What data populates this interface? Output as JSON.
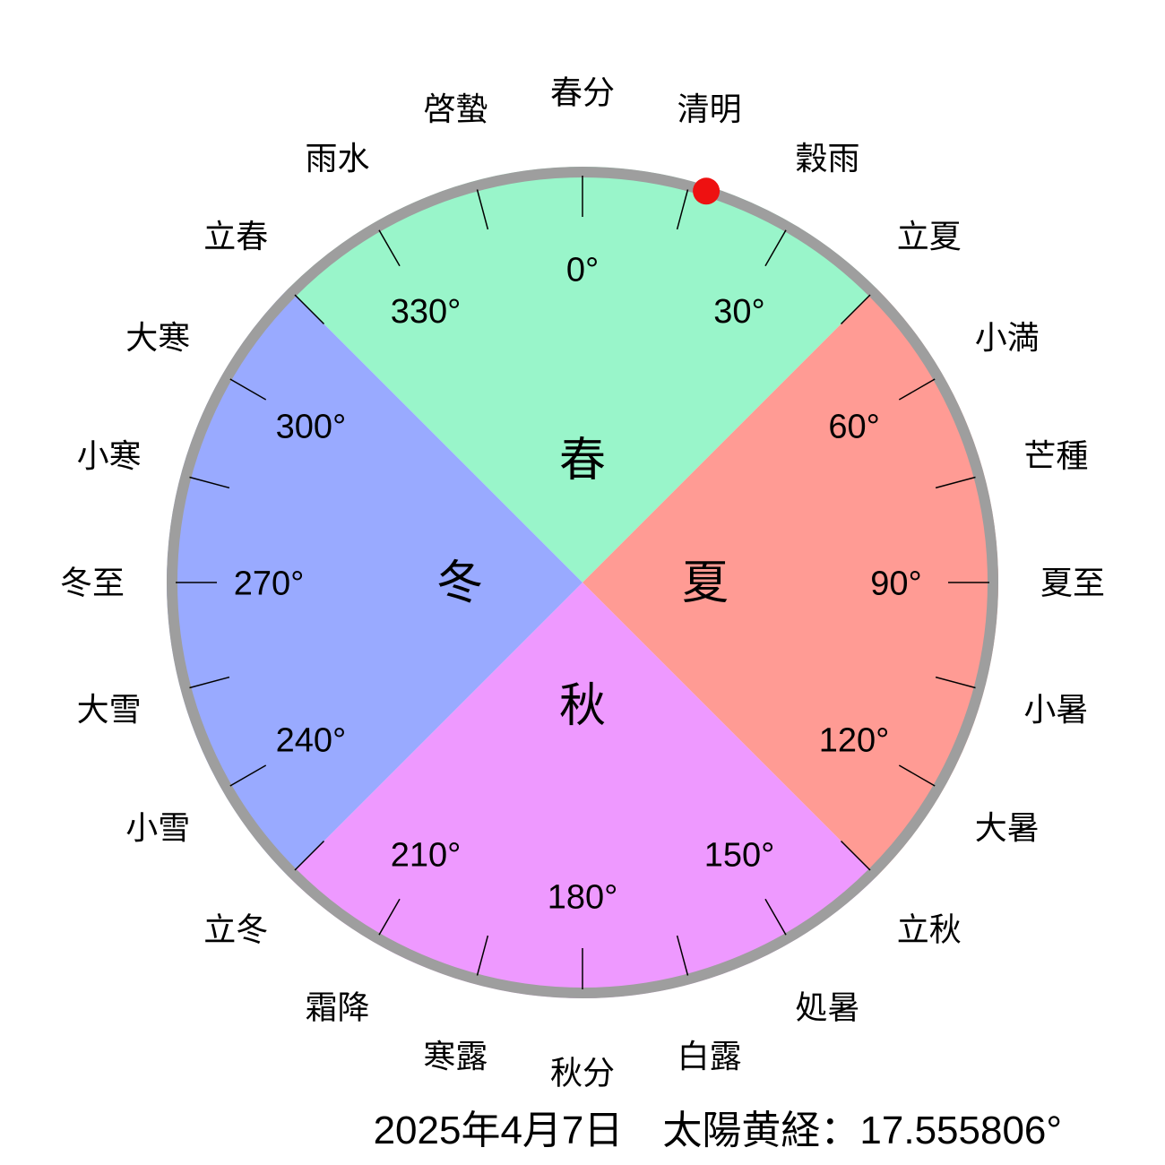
{
  "chart_data": {
    "type": "pie",
    "angle_convention": "degrees clockwise from top; 0 = vernal equinox (spring equinox at top)",
    "background": "#FFFFFF",
    "ring_color": "#9E9E9E",
    "tick_step_deg": 15,
    "seasons": [
      {
        "name": "春",
        "start_deg": -45,
        "end_deg": 45,
        "color": "#99F5CA"
      },
      {
        "name": "夏",
        "start_deg": 45,
        "end_deg": 135,
        "color": "#FF9B94"
      },
      {
        "name": "秋",
        "start_deg": 135,
        "end_deg": 225,
        "color": "#EE99FF"
      },
      {
        "name": "冬",
        "start_deg": 225,
        "end_deg": 315,
        "color": "#99AAFF"
      }
    ],
    "degree_labels": [
      {
        "text": "0°",
        "deg": 0
      },
      {
        "text": "30°",
        "deg": 30
      },
      {
        "text": "60°",
        "deg": 60
      },
      {
        "text": "90°",
        "deg": 90
      },
      {
        "text": "120°",
        "deg": 120
      },
      {
        "text": "150°",
        "deg": 150
      },
      {
        "text": "180°",
        "deg": 180
      },
      {
        "text": "210°",
        "deg": 210
      },
      {
        "text": "240°",
        "deg": 240
      },
      {
        "text": "270°",
        "deg": 270
      },
      {
        "text": "300°",
        "deg": 300
      },
      {
        "text": "330°",
        "deg": 330
      }
    ],
    "solar_terms": [
      {
        "name": "春分",
        "deg": 0
      },
      {
        "name": "清明",
        "deg": 15
      },
      {
        "name": "穀雨",
        "deg": 30
      },
      {
        "name": "立夏",
        "deg": 45
      },
      {
        "name": "小満",
        "deg": 60
      },
      {
        "name": "芒種",
        "deg": 75
      },
      {
        "name": "夏至",
        "deg": 90
      },
      {
        "name": "小暑",
        "deg": 105
      },
      {
        "name": "大暑",
        "deg": 120
      },
      {
        "name": "立秋",
        "deg": 135
      },
      {
        "name": "処暑",
        "deg": 150
      },
      {
        "name": "白露",
        "deg": 165
      },
      {
        "name": "秋分",
        "deg": 180
      },
      {
        "name": "寒露",
        "deg": 195
      },
      {
        "name": "霜降",
        "deg": 210
      },
      {
        "name": "立冬",
        "deg": 225
      },
      {
        "name": "小雪",
        "deg": 240
      },
      {
        "name": "大雪",
        "deg": 255
      },
      {
        "name": "冬至",
        "deg": 270
      },
      {
        "name": "小寒",
        "deg": 285
      },
      {
        "name": "大寒",
        "deg": 300
      },
      {
        "name": "立春",
        "deg": 315
      },
      {
        "name": "雨水",
        "deg": 330
      },
      {
        "name": "啓蟄",
        "deg": 345
      }
    ],
    "marker": {
      "deg": 17.555806,
      "color": "#EE1111"
    },
    "caption": {
      "date": "2025年4月7日",
      "label": "太陽黄経",
      "value": "17.555806°",
      "text": "2025年4月7日　太陽黄経：17.555806°"
    }
  }
}
